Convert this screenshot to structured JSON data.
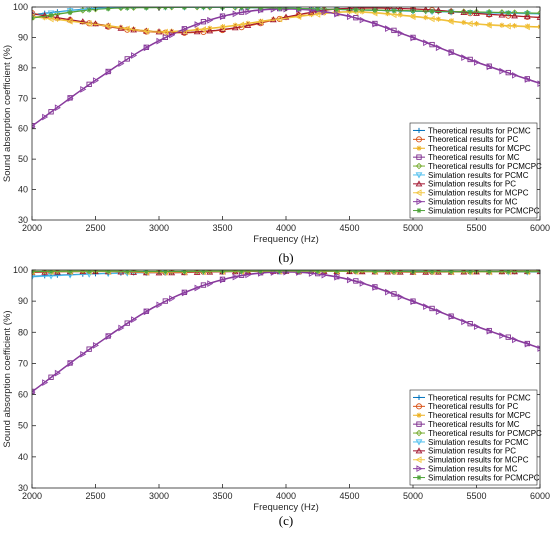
{
  "chart_data": [
    {
      "type": "line",
      "panel_label": "(b)",
      "xlabel": "Frequency (Hz)",
      "ylabel": "Sound absorption coefficient (%)",
      "xlim": [
        2000,
        6000
      ],
      "ylim": [
        30,
        100
      ],
      "x_ticks": [
        2000,
        2500,
        3000,
        3500,
        4000,
        4500,
        5000,
        5500,
        6000
      ],
      "y_ticks": [
        30,
        40,
        50,
        60,
        70,
        80,
        90,
        100
      ],
      "grid": false,
      "legend_position": "lower-right",
      "series": [
        {
          "name": "Theoretical results for PCMC",
          "color": "#0072BD",
          "marker": "plus",
          "x": [
            2000,
            2500,
            3000,
            3500,
            4000,
            4500,
            5000,
            5500,
            6000
          ],
          "y": [
            97.5,
            99.6,
            99.9,
            99.9,
            99.6,
            99.1,
            98.6,
            98.2,
            97.8
          ]
        },
        {
          "name": "Theoretical results for PC",
          "color": "#D95319",
          "marker": "circle",
          "x": [
            2000,
            2400,
            2800,
            3200,
            3600,
            4000,
            4400,
            5000,
            5500,
            6000
          ],
          "y": [
            98.0,
            95.0,
            92.3,
            91.5,
            93.0,
            96.5,
            99.3,
            99.3,
            97.8,
            96.5
          ]
        },
        {
          "name": "Theoretical results for MCPC",
          "color": "#EDB120",
          "marker": "star",
          "x": [
            2000,
            2500,
            3000,
            3500,
            4000,
            4500,
            5000,
            5500,
            6000
          ],
          "y": [
            97.0,
            94.5,
            92.0,
            93.5,
            96.5,
            98.5,
            97.0,
            94.5,
            93.5
          ]
        },
        {
          "name": "Theoretical results for MC",
          "color": "#7E2F8E",
          "marker": "square",
          "x": [
            2000,
            2500,
            3000,
            3500,
            4000,
            4500,
            5000,
            5500,
            6000
          ],
          "y": [
            61.0,
            76.0,
            89.0,
            97.0,
            99.5,
            97.0,
            90.0,
            82.0,
            75.0
          ]
        },
        {
          "name": "Theoretical results for PCMCPC",
          "color": "#77AC30",
          "marker": "diamond",
          "x": [
            2000,
            2500,
            3000,
            3500,
            4000,
            4500,
            5000,
            5500,
            6000
          ],
          "y": [
            96.5,
            99.3,
            99.9,
            99.9,
            99.6,
            99.2,
            98.8,
            98.4,
            98.0
          ]
        },
        {
          "name": "Simulation results for PCMC",
          "color": "#4DBEEE",
          "marker": "triangle-down",
          "x": [
            2000,
            2500,
            3000,
            3500,
            4000,
            4500,
            5000,
            5500,
            6000
          ],
          "y": [
            97.3,
            99.5,
            99.9,
            99.9,
            99.6,
            99.1,
            98.6,
            98.1,
            97.7
          ]
        },
        {
          "name": "Simulation results for PC",
          "color": "#A2142F",
          "marker": "triangle-up",
          "x": [
            2000,
            2400,
            2800,
            3200,
            3600,
            4000,
            4400,
            5000,
            5500,
            6000
          ],
          "y": [
            97.8,
            95.2,
            92.5,
            91.7,
            93.2,
            96.7,
            99.4,
            99.4,
            97.9,
            96.6
          ]
        },
        {
          "name": "Simulation results for MCPC",
          "color": "#F2C744",
          "marker": "triangle-left",
          "x": [
            2000,
            2500,
            3000,
            3500,
            4000,
            4500,
            5000,
            5500,
            6000
          ],
          "y": [
            96.8,
            94.3,
            91.8,
            93.3,
            96.3,
            98.3,
            96.8,
            94.3,
            93.3
          ]
        },
        {
          "name": "Simulation results for MC",
          "color": "#8C3FA3",
          "marker": "triangle-right",
          "x": [
            2000,
            2500,
            3000,
            3500,
            4000,
            4500,
            5000,
            5500,
            6000
          ],
          "y": [
            60.8,
            75.8,
            88.8,
            96.8,
            99.3,
            96.8,
            89.8,
            81.8,
            74.8
          ]
        },
        {
          "name": "Simulation results for PCMCPC",
          "color": "#4FA33A",
          "marker": "star",
          "x": [
            2000,
            2500,
            3000,
            3500,
            4000,
            4500,
            5000,
            5500,
            6000
          ],
          "y": [
            96.3,
            99.2,
            99.8,
            99.9,
            99.6,
            99.1,
            98.7,
            98.3,
            97.9
          ]
        }
      ]
    },
    {
      "type": "line",
      "panel_label": "(c)",
      "xlabel": "Frequency (Hz)",
      "ylabel": "Sound absorption coefficient (%)",
      "xlim": [
        2000,
        6000
      ],
      "ylim": [
        30,
        100
      ],
      "x_ticks": [
        2000,
        2500,
        3000,
        3500,
        4000,
        4500,
        5000,
        5500,
        6000
      ],
      "y_ticks": [
        30,
        40,
        50,
        60,
        70,
        80,
        90,
        100
      ],
      "grid": false,
      "legend_position": "lower-right",
      "series": [
        {
          "name": "Theoretical results for PCMC",
          "color": "#0072BD",
          "marker": "plus",
          "x": [
            2000,
            2500,
            3000,
            3500,
            4000,
            4500,
            5000,
            5500,
            6000
          ],
          "y": [
            98.0,
            98.8,
            99.3,
            99.6,
            99.7,
            99.7,
            99.6,
            99.5,
            99.4
          ]
        },
        {
          "name": "Theoretical results for PC",
          "color": "#D95319",
          "marker": "circle",
          "x": [
            2000,
            2500,
            3000,
            3500,
            4000,
            4500,
            5000,
            5500,
            6000
          ],
          "y": [
            99.3,
            99.6,
            99.2,
            99.5,
            99.7,
            99.6,
            99.4,
            99.5,
            99.6
          ]
        },
        {
          "name": "Theoretical results for MCPC",
          "color": "#EDB120",
          "marker": "star",
          "x": [
            2000,
            2500,
            3000,
            3500,
            4000,
            4500,
            5000,
            5500,
            6000
          ],
          "y": [
            99.5,
            99.6,
            99.4,
            99.6,
            99.7,
            99.6,
            99.5,
            99.5,
            99.6
          ]
        },
        {
          "name": "Theoretical results for MC",
          "color": "#7E2F8E",
          "marker": "square",
          "x": [
            2000,
            2500,
            3000,
            3500,
            4000,
            4500,
            5000,
            5500,
            6000
          ],
          "y": [
            61.0,
            76.0,
            89.0,
            97.0,
            99.5,
            97.0,
            90.0,
            82.0,
            75.0
          ]
        },
        {
          "name": "Theoretical results for PCMCPC",
          "color": "#77AC30",
          "marker": "diamond",
          "x": [
            2000,
            2500,
            3000,
            3500,
            4000,
            4500,
            5000,
            5500,
            6000
          ],
          "y": [
            99.6,
            99.7,
            99.6,
            99.7,
            99.8,
            99.7,
            99.6,
            99.6,
            99.6
          ]
        },
        {
          "name": "Simulation results for PCMC",
          "color": "#4DBEEE",
          "marker": "triangle-down",
          "x": [
            2000,
            2500,
            3000,
            3500,
            4000,
            4500,
            5000,
            5500,
            6000
          ],
          "y": [
            97.8,
            98.7,
            99.2,
            99.5,
            99.6,
            99.6,
            99.5,
            99.4,
            99.3
          ]
        },
        {
          "name": "Simulation results for PC",
          "color": "#A2142F",
          "marker": "triangle-up",
          "x": [
            2000,
            2500,
            3000,
            3500,
            4000,
            4500,
            5000,
            5500,
            6000
          ],
          "y": [
            99.2,
            99.5,
            99.1,
            99.4,
            99.6,
            99.5,
            99.3,
            99.4,
            99.5
          ]
        },
        {
          "name": "Simulation results for MCPC",
          "color": "#F2C744",
          "marker": "triangle-left",
          "x": [
            2000,
            2500,
            3000,
            3500,
            4000,
            4500,
            5000,
            5500,
            6000
          ],
          "y": [
            99.4,
            99.5,
            99.3,
            99.5,
            99.6,
            99.5,
            99.4,
            99.4,
            99.5
          ]
        },
        {
          "name": "Simulation results for MC",
          "color": "#8C3FA3",
          "marker": "triangle-right",
          "x": [
            2000,
            2500,
            3000,
            3500,
            4000,
            4500,
            5000,
            5500,
            6000
          ],
          "y": [
            60.8,
            75.8,
            88.8,
            96.8,
            99.3,
            96.8,
            89.8,
            81.8,
            74.8
          ]
        },
        {
          "name": "Simulation results for PCMCPC",
          "color": "#4FA33A",
          "marker": "star",
          "x": [
            2000,
            2500,
            3000,
            3500,
            4000,
            4500,
            5000,
            5500,
            6000
          ],
          "y": [
            99.5,
            99.6,
            99.5,
            99.6,
            99.7,
            99.6,
            99.5,
            99.5,
            99.5
          ]
        }
      ]
    }
  ]
}
